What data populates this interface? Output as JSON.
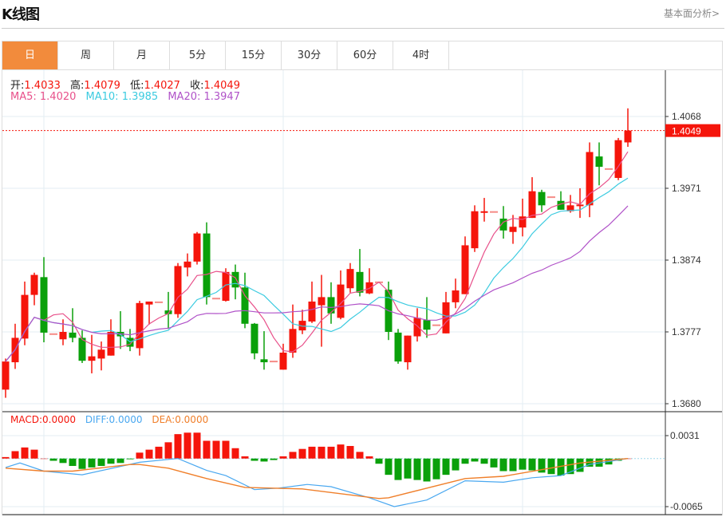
{
  "header": {
    "title": "K线图",
    "link": "基本面分析>"
  },
  "tabs": [
    {
      "label": "日",
      "active": true
    },
    {
      "label": "周"
    },
    {
      "label": "月"
    },
    {
      "label": "5分"
    },
    {
      "label": "15分"
    },
    {
      "label": "30分"
    },
    {
      "label": "60分"
    },
    {
      "label": "4时"
    }
  ],
  "legend": {
    "open_label": "开:",
    "open": "1.4033",
    "high_label": "高:",
    "high": "1.4079",
    "low_label": "低:",
    "low": "1.4027",
    "close_label": "收:",
    "close": "1.4049",
    "ma5": "MA5: 1.4020",
    "ma10": "MA10: 1.3985",
    "ma20": "MA20: 1.3947",
    "macd": "MACD:0.0000",
    "diff": "DIFF:0.0000",
    "dea": "DEA:0.0000"
  },
  "colors": {
    "up": "#f5150b",
    "down": "#0aa00a",
    "ma5": "#e8508a",
    "ma10": "#3ccbe0",
    "ma20": "#b052c8",
    "diff": "#4aa8f0",
    "dea": "#f07f2a",
    "active_tab": "#f28b3c"
  },
  "chart_data": [
    {
      "type": "candlestick",
      "y_ticks": [
        "1.4068",
        "1.3971",
        "1.3874",
        "1.3777",
        "1.3680"
      ],
      "ylim": [
        1.368,
        1.4068
      ],
      "current_price": "1.4049",
      "grid": true,
      "ma_periods": [
        5,
        10,
        20
      ],
      "ohlc": [
        [
          1.3699,
          1.3741,
          1.3688,
          1.3737
        ],
        [
          1.3736,
          1.3788,
          1.3727,
          1.3769
        ],
        [
          1.3768,
          1.3845,
          1.3759,
          1.3827
        ],
        [
          1.3827,
          1.3857,
          1.3813,
          1.3854
        ],
        [
          1.3851,
          1.3878,
          1.3763,
          1.3776
        ],
        [
          1.3774,
          1.3774,
          1.3774,
          1.3774
        ],
        [
          1.3767,
          1.3794,
          1.3759,
          1.3777
        ],
        [
          1.3776,
          1.3809,
          1.3763,
          1.3769
        ],
        [
          1.3769,
          1.3779,
          1.3735,
          1.3738
        ],
        [
          1.3738,
          1.3773,
          1.3721,
          1.3744
        ],
        [
          1.3741,
          1.3764,
          1.3725,
          1.3753
        ],
        [
          1.3745,
          1.3794,
          1.3745,
          1.3777
        ],
        [
          1.3777,
          1.3805,
          1.3754,
          1.3771
        ],
        [
          1.3769,
          1.3781,
          1.3751,
          1.3757
        ],
        [
          1.3755,
          1.3819,
          1.3745,
          1.3816
        ],
        [
          1.3814,
          1.3818,
          1.3787,
          1.3818
        ],
        [
          1.3817,
          1.3817,
          1.3817,
          1.3817
        ],
        [
          1.3806,
          1.3831,
          1.3781,
          1.3801
        ],
        [
          1.3801,
          1.387,
          1.3796,
          1.3866
        ],
        [
          1.3864,
          1.3883,
          1.3852,
          1.3872
        ],
        [
          1.3872,
          1.3912,
          1.3868,
          1.391
        ],
        [
          1.391,
          1.3925,
          1.3814,
          1.3824
        ],
        [
          1.3822,
          1.3822,
          1.3822,
          1.3822
        ],
        [
          1.3819,
          1.3863,
          1.3818,
          1.3858
        ],
        [
          1.3858,
          1.3868,
          1.3821,
          1.3837
        ],
        [
          1.3837,
          1.3857,
          1.3782,
          1.3788
        ],
        [
          1.3788,
          1.3789,
          1.374,
          1.3748
        ],
        [
          1.374,
          1.3778,
          1.3726,
          1.3736
        ],
        [
          1.3737,
          1.3737,
          1.3737,
          1.3737
        ],
        [
          1.3726,
          1.3761,
          1.3726,
          1.3749
        ],
        [
          1.3749,
          1.3814,
          1.3742,
          1.3781
        ],
        [
          1.3779,
          1.3807,
          1.3774,
          1.3792
        ],
        [
          1.3791,
          1.3845,
          1.3789,
          1.3818
        ],
        [
          1.3813,
          1.3854,
          1.3757,
          1.3824
        ],
        [
          1.3824,
          1.3844,
          1.3788,
          1.3802
        ],
        [
          1.3796,
          1.386,
          1.3794,
          1.3841
        ],
        [
          1.3836,
          1.387,
          1.383,
          1.3862
        ],
        [
          1.3858,
          1.3889,
          1.3825,
          1.383
        ],
        [
          1.3829,
          1.3863,
          1.3828,
          1.3844
        ],
        [
          1.3844,
          1.3844,
          1.3844,
          1.3844
        ],
        [
          1.3834,
          1.3845,
          1.3766,
          1.3777
        ],
        [
          1.3776,
          1.3781,
          1.3734,
          1.3737
        ],
        [
          1.3736,
          1.3772,
          1.3726,
          1.3772
        ],
        [
          1.3771,
          1.3809,
          1.3764,
          1.3796
        ],
        [
          1.3793,
          1.3824,
          1.3769,
          1.378
        ],
        [
          1.3786,
          1.3786,
          1.3786,
          1.3786
        ],
        [
          1.3775,
          1.3831,
          1.3775,
          1.3817
        ],
        [
          1.3817,
          1.3849,
          1.3809,
          1.3833
        ],
        [
          1.3828,
          1.3906,
          1.3828,
          1.3894
        ],
        [
          1.389,
          1.3948,
          1.3885,
          1.394
        ],
        [
          1.394,
          1.3958,
          1.3926,
          1.394
        ],
        [
          1.3939,
          1.3939,
          1.3939,
          1.3939
        ],
        [
          1.393,
          1.3947,
          1.3903,
          1.3914
        ],
        [
          1.3912,
          1.3935,
          1.3896,
          1.3919
        ],
        [
          1.3918,
          1.3957,
          1.3906,
          1.3933
        ],
        [
          1.3931,
          1.3986,
          1.3931,
          1.3967
        ],
        [
          1.3966,
          1.3969,
          1.3939,
          1.3948
        ],
        [
          1.3959,
          1.3959,
          1.3959,
          1.3959
        ],
        [
          1.3954,
          1.3967,
          1.3942,
          1.3942
        ],
        [
          1.394,
          1.3962,
          1.3938,
          1.3948
        ],
        [
          1.3947,
          1.3971,
          1.3931,
          1.3949
        ],
        [
          1.3948,
          1.4033,
          1.3932,
          1.402
        ],
        [
          1.4014,
          1.4033,
          1.3975,
          1.4
        ],
        [
          1.3997,
          1.3997,
          1.3997,
          1.3997
        ],
        [
          1.3985,
          1.4039,
          1.3982,
          1.4036
        ],
        [
          1.4033,
          1.4079,
          1.4027,
          1.4049
        ]
      ]
    },
    {
      "type": "bar+line",
      "y_ticks": [
        "0.0031",
        "-0.0065"
      ],
      "ylim": [
        -0.0065,
        0.0031
      ],
      "macd_hist": [
        0.0002,
        0.001,
        0.0015,
        0.0012,
        0,
        -0.0003,
        -0.0006,
        -0.001,
        -0.0014,
        -0.0012,
        -0.001,
        -0.0007,
        -0.0006,
        -0.0001,
        0.0008,
        0.0012,
        0.0016,
        0.0022,
        0.0033,
        0.0035,
        0.0035,
        0.0024,
        0.0024,
        0.0024,
        0.0014,
        0.0003,
        -0.0003,
        -0.0004,
        -0.0002,
        0.0003,
        0.0009,
        0.0013,
        0.0016,
        0.0016,
        0.0016,
        0.0019,
        0.0017,
        0.0009,
        0.0003,
        -0.0007,
        -0.0022,
        -0.0029,
        -0.0027,
        -0.0029,
        -0.0031,
        -0.0028,
        -0.0022,
        -0.0016,
        -0.0007,
        -0.0004,
        -0.0007,
        -0.0012,
        -0.0017,
        -0.0017,
        -0.0015,
        -0.0016,
        -0.0019,
        -0.0021,
        -0.0023,
        -0.0021,
        -0.0018,
        -0.0011,
        -0.0011,
        -0.0008,
        -0.0003,
        0
      ],
      "diff": [
        [
          0,
          -0.0012
        ],
        [
          1.5,
          -0.0006
        ],
        [
          4,
          -0.0017
        ],
        [
          8,
          -0.0022
        ],
        [
          14,
          -0.0005
        ],
        [
          18,
          0.0
        ],
        [
          21,
          -0.0016
        ],
        [
          23,
          -0.0023
        ],
        [
          26,
          -0.0042
        ],
        [
          28.5,
          -0.004
        ],
        [
          31.5,
          -0.0035
        ],
        [
          34,
          -0.0038
        ],
        [
          38,
          -0.0053
        ],
        [
          40.6,
          -0.0065
        ],
        [
          44,
          -0.0056
        ],
        [
          48,
          -0.003
        ],
        [
          52,
          -0.0032
        ],
        [
          55,
          -0.0026
        ],
        [
          58,
          -0.0023
        ],
        [
          61,
          -0.0008
        ],
        [
          65,
          0.0
        ]
      ],
      "dea": [
        [
          0,
          -0.0013
        ],
        [
          4,
          -0.0017
        ],
        [
          7,
          -0.0017
        ],
        [
          13,
          -0.0008
        ],
        [
          14,
          -0.0008
        ],
        [
          17,
          -0.0013
        ],
        [
          21,
          -0.0027
        ],
        [
          25,
          -0.0039
        ],
        [
          31,
          -0.0041
        ],
        [
          39,
          -0.0054
        ],
        [
          40,
          -0.0053
        ],
        [
          48,
          -0.0027
        ],
        [
          52,
          -0.0024
        ],
        [
          60,
          -0.0006
        ],
        [
          65,
          0.0
        ]
      ]
    }
  ]
}
